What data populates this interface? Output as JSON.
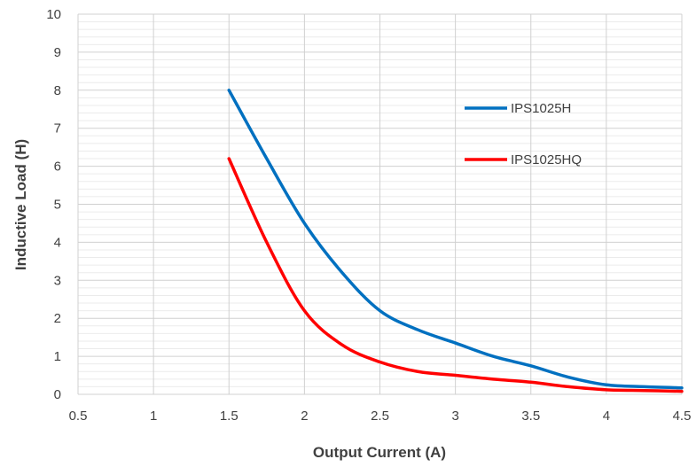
{
  "chart_data": {
    "type": "line",
    "title": "",
    "xlabel": "Output Current (A)",
    "ylabel": "Inductive Load (H)",
    "xlim": [
      0.5,
      4.5
    ],
    "ylim": [
      0,
      10
    ],
    "x_ticks": [
      "0.5",
      "1",
      "1.5",
      "2",
      "2.5",
      "3",
      "3.5",
      "4",
      "4.5"
    ],
    "y_ticks": [
      "0",
      "1",
      "2",
      "3",
      "4",
      "5",
      "6",
      "7",
      "8",
      "9",
      "10"
    ],
    "grid": true,
    "minor_grid": true,
    "legend_position": "right",
    "series": [
      {
        "name": "IPS1025H",
        "color": "#0070C0",
        "x": [
          1.5,
          1.75,
          2.0,
          2.25,
          2.5,
          2.75,
          3.0,
          3.25,
          3.5,
          3.75,
          4.0,
          4.25,
          4.5
        ],
        "y": [
          8.0,
          6.2,
          4.5,
          3.2,
          2.2,
          1.7,
          1.35,
          1.0,
          0.75,
          0.45,
          0.25,
          0.2,
          0.17
        ]
      },
      {
        "name": "IPS1025HQ",
        "color": "#FF0000",
        "x": [
          1.5,
          1.75,
          2.0,
          2.25,
          2.5,
          2.75,
          3.0,
          3.25,
          3.5,
          3.75,
          4.0,
          4.25,
          4.5
        ],
        "y": [
          6.2,
          4.0,
          2.2,
          1.3,
          0.85,
          0.6,
          0.5,
          0.4,
          0.32,
          0.2,
          0.12,
          0.1,
          0.08
        ]
      }
    ]
  }
}
